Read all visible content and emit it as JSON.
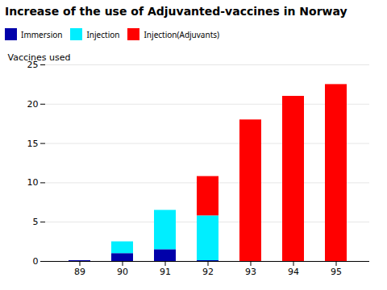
{
  "chart_data": {
    "type": "bar",
    "stacked": true,
    "title": "Increase of the use of Adjuvanted-vaccines in Norway",
    "ylabel": "Vaccines used",
    "categories": [
      "89",
      "90",
      "91",
      "92",
      "93",
      "94",
      "95"
    ],
    "series": [
      {
        "name": "Immersion",
        "color": "#0000aa",
        "values": [
          0.1,
          1.0,
          1.5,
          0.1,
          0.0,
          0.0,
          0.0
        ]
      },
      {
        "name": "Injection",
        "color": "#00eeff",
        "values": [
          0.0,
          1.5,
          5.0,
          5.7,
          0.0,
          0.0,
          0.0
        ]
      },
      {
        "name": "Injection(Adjuvants)",
        "color": "#ff0000",
        "values": [
          0.0,
          0.0,
          0.0,
          5.0,
          18.0,
          21.0,
          22.5
        ]
      }
    ],
    "ylim": [
      0,
      25
    ],
    "yticks": [
      0,
      5,
      10,
      15,
      20,
      25
    ],
    "grid": true,
    "legend": "top"
  }
}
